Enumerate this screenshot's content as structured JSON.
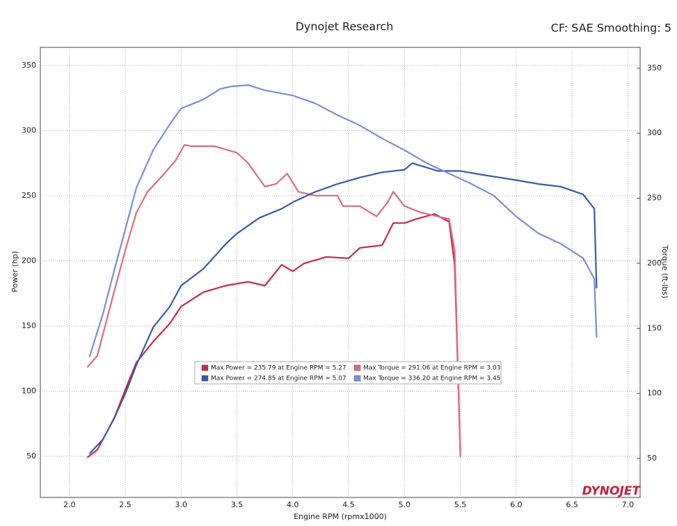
{
  "chart_data": {
    "type": "line",
    "title": "Dynojet Research",
    "subtitle": "CF: SAE Smoothing: 5",
    "x_label": "Engine RPM (rpmx1000)",
    "y_label": "Power (hp)",
    "y2_label": "Torque (ft-lbs)",
    "logo": "DYNOJET",
    "grid": true,
    "xlim": [
      1.74,
      7.11
    ],
    "ylim": [
      18.4,
      363.9
    ],
    "y2lim": [
      20,
      366
    ],
    "xticks": [
      {
        "value": 2,
        "label": "2.0"
      },
      2.5,
      {
        "value": 3,
        "label": "3.0"
      },
      3.5,
      {
        "value": 4,
        "label": "4.0"
      },
      4.5,
      {
        "value": 5,
        "label": "5.0"
      },
      5.5,
      {
        "value": 6,
        "label": "6.0"
      },
      6.5,
      {
        "value": 7,
        "label": "7.0"
      }
    ],
    "yticks": [
      50,
      100,
      150,
      200,
      250,
      300,
      350
    ],
    "y2ticks": [
      50,
      100,
      150,
      200,
      250,
      300,
      350
    ],
    "series": [
      {
        "name": "Max Power = 235.79 at Engine RPM = 5.27",
        "color": "#c8284a",
        "axis": "y",
        "x": [
          2.16,
          2.25,
          2.4,
          2.5,
          2.6,
          2.75,
          2.9,
          3.0,
          3.2,
          3.4,
          3.6,
          3.75,
          3.9,
          4.0,
          4.1,
          4.3,
          4.5,
          4.6,
          4.8,
          4.9,
          5.0,
          5.1,
          5.27,
          5.4,
          5.45,
          5.5
        ],
        "values": [
          49,
          55,
          79,
          101,
          122,
          138,
          152,
          165,
          176,
          181,
          184,
          181,
          197,
          192,
          198,
          203,
          202,
          210,
          212,
          229,
          229,
          232,
          236,
          230,
          197,
          53
        ]
      },
      {
        "name": "Max Torque = 291.06 at Engine RPM = 3.03",
        "color": "#dc6a82",
        "axis": "y2",
        "x": [
          2.16,
          2.25,
          2.4,
          2.5,
          2.6,
          2.7,
          2.85,
          2.95,
          3.03,
          3.1,
          3.3,
          3.5,
          3.6,
          3.75,
          3.85,
          3.95,
          4.05,
          4.2,
          4.4,
          4.45,
          4.6,
          4.75,
          4.85,
          4.9,
          5.0,
          5.15,
          5.3,
          5.4,
          5.45,
          5.5
        ],
        "values": [
          120,
          129,
          178,
          210,
          239,
          255,
          269,
          279,
          291,
          290,
          290,
          285,
          277,
          259,
          261,
          269,
          255,
          252,
          252,
          244,
          244,
          236,
          247,
          255,
          244,
          239,
          236,
          234,
          210,
          51
        ]
      },
      {
        "name": "Max Power = 274.85 at Engine RPM = 5.07",
        "color": "#3a58a8",
        "axis": "y",
        "x": [
          2.18,
          2.3,
          2.4,
          2.5,
          2.6,
          2.75,
          2.9,
          3.0,
          3.2,
          3.4,
          3.5,
          3.7,
          3.9,
          4.0,
          4.2,
          4.4,
          4.6,
          4.8,
          5.0,
          5.07,
          5.3,
          5.5,
          5.7,
          6.0,
          6.2,
          6.4,
          6.6,
          6.7,
          6.72
        ],
        "values": [
          52,
          63,
          79,
          98,
          120,
          149,
          165,
          181,
          194,
          213,
          221,
          233,
          240,
          245,
          253,
          259,
          264,
          268,
          270,
          275,
          269,
          269,
          266,
          262,
          259,
          257,
          251,
          240,
          179
        ]
      },
      {
        "name": "Max Torque = 336.20 at Engine RPM = 3.45",
        "color": "#7a8ed2",
        "axis": "y2",
        "x": [
          2.18,
          2.3,
          2.4,
          2.5,
          2.6,
          2.75,
          2.9,
          3.0,
          3.2,
          3.35,
          3.45,
          3.6,
          3.75,
          4.0,
          4.2,
          4.4,
          4.6,
          4.8,
          5.0,
          5.2,
          5.4,
          5.6,
          5.8,
          6.0,
          6.2,
          6.4,
          6.6,
          6.7,
          6.72
        ],
        "values": [
          128,
          161,
          194,
          226,
          258,
          287,
          307,
          319,
          326,
          334,
          336,
          337,
          333,
          329,
          323,
          314,
          306,
          296,
          287,
          277,
          269,
          261,
          252,
          236,
          223,
          215,
          204,
          188,
          143
        ]
      }
    ]
  }
}
